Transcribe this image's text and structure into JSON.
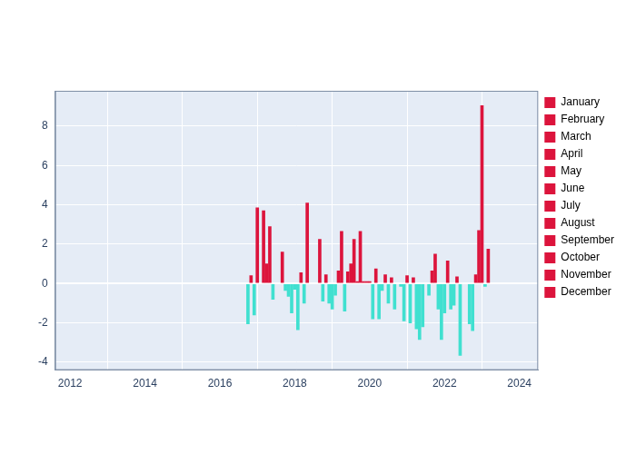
{
  "chart_data": {
    "type": "bar",
    "xlim": [
      2011.6,
      2024.5
    ],
    "xticks": [
      2012,
      2014,
      2016,
      2018,
      2020,
      2022,
      2024
    ],
    "ylim": [
      -4.4,
      9.8
    ],
    "yticks": [
      -4,
      -2,
      0,
      2,
      4,
      6,
      8
    ],
    "grid": true,
    "legend": "right",
    "series": [
      {
        "name": "January",
        "color": "#dc143c",
        "x": [
          2017,
          2018,
          2019,
          2020,
          2021,
          2022,
          2023
        ],
        "values": [
          3.85,
          -0.3,
          -1.3,
          0.1,
          0.4,
          -1.5,
          9.05
        ],
        "colors": [
          "#dc143c",
          "#40e0d0",
          "#40e0d0",
          "#dc143c",
          "#dc143c",
          "#40e0d0",
          "#dc143c"
        ]
      },
      {
        "name": "February",
        "color": "#dc143c",
        "x": [
          2018.083,
          2019.083,
          2020.083,
          2021.083,
          2022.083,
          2023.083
        ],
        "values": [
          -2.35,
          -0.6,
          -1.8,
          -2.0,
          1.15,
          -0.15
        ],
        "colors": [
          "#40e0d0",
          "#40e0d0",
          "#40e0d0",
          "#40e0d0",
          "#dc143c",
          "#40e0d0"
        ]
      },
      {
        "name": "March",
        "color": "#dc143c",
        "x": [
          2017.167,
          2018.167,
          2019.167,
          2020.167,
          2021.167,
          2022.167,
          2023.167
        ],
        "values": [
          3.7,
          0.55,
          0.65,
          0.75,
          0.3,
          -1.3,
          1.75
        ],
        "colors": [
          "#dc143c",
          "#dc143c",
          "#dc143c",
          "#dc143c",
          "#dc143c",
          "#40e0d0",
          "#dc143c"
        ]
      },
      {
        "name": "April",
        "color": "#dc143c",
        "x": [
          2017.25,
          2018.25,
          2019.25,
          2020.25,
          2021.25,
          2022.25
        ],
        "values": [
          1.0,
          -1.0,
          2.65,
          -1.8,
          -2.3,
          -1.1
        ],
        "colors": [
          "#dc143c",
          "#40e0d0",
          "#dc143c",
          "#40e0d0",
          "#40e0d0",
          "#40e0d0"
        ]
      },
      {
        "name": "May",
        "color": "#dc143c",
        "x": [
          2017.333,
          2018.333,
          2019.333,
          2020.333,
          2021.333,
          2022.333
        ],
        "values": [
          2.9,
          4.1,
          -1.4,
          -0.35,
          -2.85,
          0.35
        ],
        "colors": [
          "#dc143c",
          "#dc143c",
          "#40e0d0",
          "#40e0d0",
          "#40e0d0",
          "#dc143c"
        ]
      },
      {
        "name": "June",
        "color": "#dc143c",
        "x": [
          2017.417,
          2019.417,
          2020.417,
          2021.417,
          2022.417
        ],
        "values": [
          -0.8,
          0.6,
          0.45,
          -2.2,
          -3.65
        ],
        "colors": [
          "#40e0d0",
          "#dc143c",
          "#dc143c",
          "#40e0d0",
          "#40e0d0"
        ]
      },
      {
        "name": "July",
        "color": "#dc143c",
        "x": [
          2019.5,
          2020.5
        ],
        "values": [
          1.0,
          -1.0
        ],
        "colors": [
          "#dc143c",
          "#40e0d0"
        ]
      },
      {
        "name": "August",
        "color": "#dc143c",
        "x": [
          2019.583,
          2020.583,
          2021.583
        ],
        "values": [
          2.25,
          0.3,
          -0.6
        ],
        "colors": [
          "#dc143c",
          "#dc143c",
          "#40e0d0"
        ]
      },
      {
        "name": "September",
        "color": "#dc143c",
        "x": [
          2017.667,
          2018.667,
          2019.667,
          2020.667,
          2021.667,
          2022.667
        ],
        "values": [
          1.6,
          2.25,
          0.1,
          -1.3,
          0.65,
          -2.05
        ],
        "colors": [
          "#dc143c",
          "#dc143c",
          "#dc143c",
          "#40e0d0",
          "#dc143c",
          "#40e0d0"
        ]
      },
      {
        "name": "October",
        "color": "#dc143c",
        "x": [
          2016.75,
          2017.75,
          2018.75,
          2019.75,
          2021.75,
          2022.75
        ],
        "values": [
          -2.05,
          -0.35,
          -0.9,
          2.65,
          1.5,
          -2.4
        ],
        "colors": [
          "#40e0d0",
          "#40e0d0",
          "#40e0d0",
          "#dc143c",
          "#dc143c",
          "#40e0d0"
        ]
      },
      {
        "name": "November",
        "color": "#dc143c",
        "x": [
          2016.833,
          2017.833,
          2018.833,
          2019.833,
          2020.833,
          2021.833,
          2022.833
        ],
        "values": [
          0.4,
          -0.65,
          0.45,
          0.1,
          -0.15,
          -1.3,
          0.45
        ],
        "colors": [
          "#dc143c",
          "#40e0d0",
          "#dc143c",
          "#dc143c",
          "#40e0d0",
          "#40e0d0",
          "#dc143c"
        ]
      },
      {
        "name": "December",
        "color": "#dc143c",
        "x": [
          2016.917,
          2017.917,
          2018.917,
          2019.917,
          2020.917,
          2021.917,
          2022.917
        ],
        "values": [
          -1.6,
          -1.5,
          -1.0,
          0.1,
          -1.9,
          -2.85,
          2.7
        ],
        "colors": [
          "#40e0d0",
          "#40e0d0",
          "#40e0d0",
          "#dc143c",
          "#40e0d0",
          "#40e0d0",
          "#dc143c"
        ]
      }
    ]
  }
}
